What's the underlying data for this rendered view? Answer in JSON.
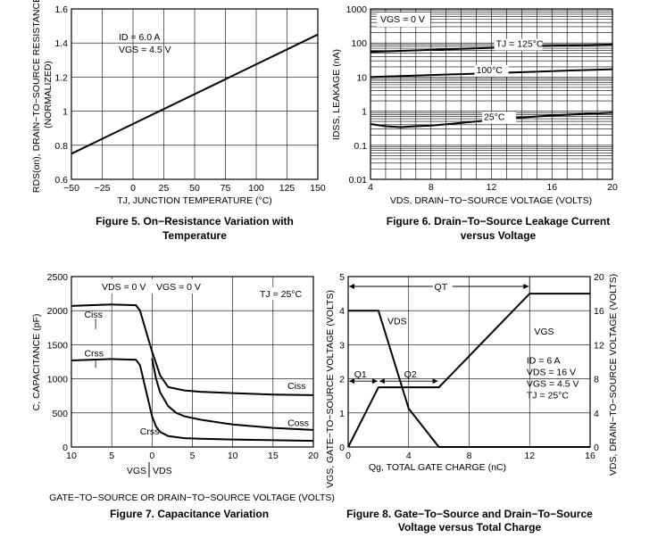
{
  "chart_data": [
    {
      "type": "line",
      "caption_line1": "Figure 5. On−Resistance Variation with",
      "caption_line2": "Temperature",
      "ylabel_line1": "RDS(on), DRAIN−TO−SOURCE RESISTANCE",
      "ylabel_line2": "(NORMALIZED)",
      "xlabel": "TJ, JUNCTION TEMPERATURE (°C)",
      "xlim": [
        -50,
        150
      ],
      "ylim": [
        0.6,
        1.6
      ],
      "x_ticks": [
        "−50",
        "−25",
        "0",
        "25",
        "50",
        "75",
        "100",
        "125",
        "150"
      ],
      "y_ticks": [
        "0.6",
        "0.8",
        "1",
        "1.2",
        "1.4",
        "1.6"
      ],
      "annotations": [
        "ID = 6.0 A",
        "VGS = 4.5 V"
      ],
      "series": [
        {
          "x": [
            -50,
            150
          ],
          "y": [
            0.75,
            1.45
          ]
        }
      ]
    },
    {
      "type": "line",
      "caption_line1": "Figure 6. Drain−To−Source Leakage Current",
      "caption_line2": "versus Voltage",
      "ylabel": "IDSS, LEAKAGE (nA)",
      "xlabel": "VDS, DRAIN−TO−SOURCE VOLTAGE (VOLTS)",
      "xlim": [
        4,
        20
      ],
      "ylim": [
        0.01,
        1000
      ],
      "yscale": "log",
      "x_ticks": [
        "4",
        "8",
        "12",
        "16",
        "20"
      ],
      "y_ticks": [
        "0.01",
        "0.1",
        "1",
        "10",
        "100",
        "1000"
      ],
      "annotations": [
        "VGS = 0 V"
      ],
      "series": [
        {
          "name": "TJ = 125°C",
          "x": [
            4,
            8,
            12,
            16,
            20
          ],
          "y": [
            55,
            63,
            72,
            83,
            90
          ]
        },
        {
          "name": "100°C",
          "x": [
            4,
            8,
            12,
            16,
            20
          ],
          "y": [
            10,
            11.5,
            13,
            15,
            17
          ]
        },
        {
          "name": "25°C",
          "x": [
            4,
            5,
            6,
            7,
            8,
            10,
            12,
            14,
            16,
            18,
            20
          ],
          "y": [
            0.42,
            0.36,
            0.34,
            0.36,
            0.38,
            0.45,
            0.55,
            0.65,
            0.75,
            0.82,
            0.9
          ]
        }
      ]
    },
    {
      "type": "line",
      "caption": "Figure 7. Capacitance Variation",
      "ylabel": "C, CAPACITANCE (pF)",
      "xlabel": "GATE−TO−SOURCE OR DRAIN−TO−SOURCE VOLTAGE (VOLTS)",
      "x_ticks": [
        "10",
        "5",
        "0",
        "5",
        "10",
        "15",
        "20"
      ],
      "x_values": [
        -10,
        -5,
        0,
        5,
        10,
        15,
        20
      ],
      "xlim": [
        -10,
        20
      ],
      "ylim": [
        0,
        2500
      ],
      "y_ticks": [
        "0",
        "500",
        "1000",
        "1500",
        "2000",
        "2500"
      ],
      "annotations": [
        "VDS = 0 V",
        "VGS = 0 V",
        "TJ = 25°C",
        "VGS",
        "VDS"
      ],
      "series": [
        {
          "name": "Ciss",
          "x": [
            -10,
            -5,
            -2,
            -1.5,
            -1,
            0,
            1,
            2,
            4,
            6,
            10,
            15,
            20
          ],
          "y": [
            2070,
            2090,
            2080,
            2000,
            1800,
            1400,
            1050,
            880,
            830,
            810,
            790,
            770,
            760
          ]
        },
        {
          "name": "Crss",
          "x": [
            -10,
            -5,
            -2,
            -1.5,
            -1,
            -0.5,
            0,
            0.5,
            1,
            2,
            4,
            6,
            10,
            15,
            20
          ],
          "y": [
            1270,
            1290,
            1280,
            1200,
            950,
            700,
            450,
            300,
            220,
            160,
            130,
            120,
            110,
            100,
            90
          ]
        },
        {
          "name": "Coss",
          "x": [
            0,
            0.5,
            1,
            2,
            3,
            4,
            6,
            10,
            15,
            20
          ],
          "y": [
            1300,
            1000,
            800,
            600,
            500,
            450,
            400,
            330,
            280,
            250
          ]
        }
      ]
    },
    {
      "type": "line",
      "caption_line1": "Figure 8. Gate−To−Source and Drain−To−Source",
      "caption_line2": "Voltage versus Total Charge",
      "ylabel_left": "VGS, GATE−TO−SOURCE VOLTAGE (VOLTS)",
      "ylabel_right": "VDS, DRAIN−TO−SOURCE VOLTAGE (VOLTS)",
      "xlabel": "Qg, TOTAL GATE CHARGE (nC)",
      "xlim": [
        0,
        16
      ],
      "ylim_left": [
        0,
        5
      ],
      "ylim_right": [
        0,
        20
      ],
      "x_ticks": [
        "0",
        "4",
        "8",
        "12",
        "16"
      ],
      "y_ticks_left": [
        "0",
        "1",
        "2",
        "3",
        "4",
        "5"
      ],
      "y_ticks_right": [
        "0",
        "4",
        "8",
        "12",
        "16",
        "20"
      ],
      "annotations": [
        "QT",
        "Q1",
        "Q2",
        "VDS",
        "VGS",
        "ID = 6 A",
        "VDS = 16 V",
        "VGS = 4.5 V",
        "TJ = 25°C"
      ],
      "series": [
        {
          "name": "VGS",
          "axis": "left",
          "x": [
            0,
            2,
            6,
            12,
            16
          ],
          "y": [
            0,
            1.75,
            1.75,
            4.5,
            4.5
          ]
        },
        {
          "name": "VDS",
          "axis": "right",
          "x": [
            0,
            2,
            4,
            6,
            16
          ],
          "y": [
            16,
            16,
            4.5,
            0,
            0
          ]
        }
      ]
    }
  ]
}
